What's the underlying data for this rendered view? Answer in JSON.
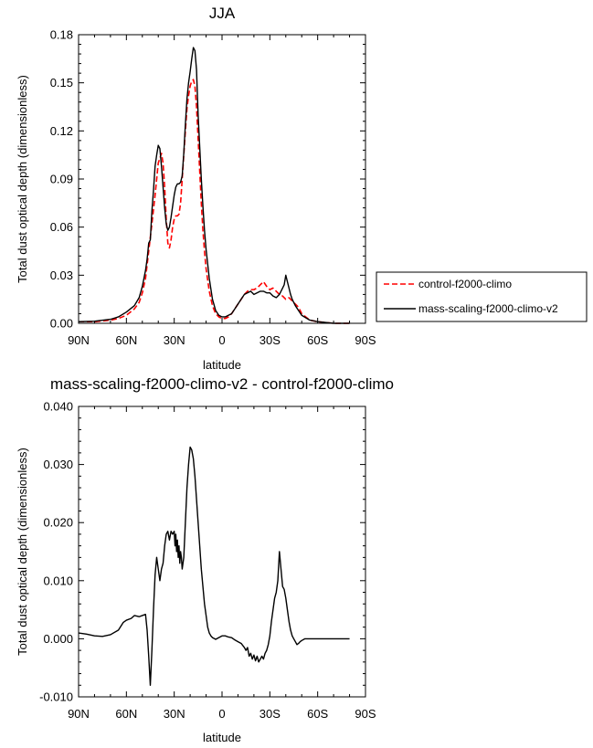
{
  "chart_data": [
    {
      "type": "line",
      "title": "JJA",
      "xlabel": "latitude",
      "ylabel": "Total dust optical depth (dimensionless)",
      "xlim": [
        90,
        -90
      ],
      "ylim": [
        0,
        0.18
      ],
      "x_ticks": [
        90,
        60,
        30,
        0,
        -30,
        -60,
        -90
      ],
      "x_tick_labels": [
        "90N",
        "60N",
        "30N",
        "0",
        "30S",
        "60S",
        "90S"
      ],
      "y_ticks": [
        0,
        0.03,
        0.06,
        0.09,
        0.12,
        0.15,
        0.18
      ],
      "y_tick_labels": [
        "0.00",
        "0.03",
        "0.06",
        "0.09",
        "0.12",
        "0.15",
        "0.18"
      ],
      "legend_position": "outside-right",
      "series": [
        {
          "name": "control-f2000-climo",
          "color": "#ff0000",
          "dash": "dashed",
          "x": [
            90,
            80,
            70,
            65,
            60,
            55,
            52,
            50,
            48,
            46,
            44,
            42,
            40,
            38,
            37,
            36,
            35,
            34,
            33,
            32,
            31,
            30,
            29,
            28,
            27,
            26,
            25,
            24,
            23,
            22,
            21,
            20,
            19,
            18,
            17,
            16,
            15,
            14,
            13,
            12,
            11,
            10,
            8,
            6,
            4,
            2,
            0,
            -2,
            -4,
            -6,
            -8,
            -10,
            -12,
            -14,
            -16,
            -18,
            -20,
            -22,
            -24,
            -26,
            -28,
            -30,
            -32,
            -34,
            -36,
            -38,
            -40,
            -42,
            -44,
            -46,
            -48,
            -50,
            -55,
            -60,
            -70,
            -80
          ],
          "y": [
            0.001,
            0.001,
            0.002,
            0.003,
            0.005,
            0.009,
            0.013,
            0.019,
            0.028,
            0.045,
            0.062,
            0.08,
            0.1,
            0.106,
            0.1,
            0.085,
            0.065,
            0.05,
            0.047,
            0.052,
            0.06,
            0.065,
            0.067,
            0.067,
            0.068,
            0.075,
            0.09,
            0.105,
            0.12,
            0.134,
            0.142,
            0.148,
            0.151,
            0.152,
            0.148,
            0.135,
            0.115,
            0.095,
            0.075,
            0.058,
            0.045,
            0.034,
            0.02,
            0.011,
            0.006,
            0.004,
            0.003,
            0.003,
            0.004,
            0.006,
            0.009,
            0.012,
            0.015,
            0.018,
            0.02,
            0.021,
            0.021,
            0.022,
            0.024,
            0.026,
            0.023,
            0.021,
            0.022,
            0.02,
            0.018,
            0.017,
            0.015,
            0.016,
            0.014,
            0.012,
            0.01,
            0.006,
            0.002,
            0.001,
            0.0,
            0.0
          ]
        },
        {
          "name": "mass-scaling-f2000-climo-v2",
          "color": "#000000",
          "dash": "solid",
          "x": [
            90,
            80,
            70,
            65,
            60,
            55,
            52,
            50,
            48,
            47,
            46,
            45,
            44,
            43,
            42,
            41,
            40,
            39,
            38,
            37,
            36,
            35,
            34,
            33,
            32,
            31,
            30,
            29,
            28,
            27,
            26,
            25,
            24,
            23,
            22,
            21,
            20,
            19,
            18,
            17,
            16,
            15,
            14,
            13,
            12,
            11,
            10,
            8,
            6,
            4,
            2,
            0,
            -2,
            -4,
            -6,
            -8,
            -10,
            -12,
            -14,
            -16,
            -18,
            -20,
            -22,
            -24,
            -26,
            -28,
            -30,
            -32,
            -34,
            -36,
            -37,
            -38,
            -39,
            -40,
            -41,
            -42,
            -43,
            -44,
            -46,
            -48,
            -50,
            -55,
            -60,
            -70,
            -80
          ],
          "y": [
            0.001,
            0.0013,
            0.0025,
            0.004,
            0.007,
            0.011,
            0.016,
            0.023,
            0.033,
            0.04,
            0.05,
            0.052,
            0.07,
            0.083,
            0.098,
            0.105,
            0.111,
            0.109,
            0.098,
            0.085,
            0.072,
            0.062,
            0.058,
            0.06,
            0.066,
            0.073,
            0.08,
            0.085,
            0.087,
            0.087,
            0.088,
            0.092,
            0.106,
            0.124,
            0.14,
            0.15,
            0.157,
            0.165,
            0.172,
            0.17,
            0.158,
            0.13,
            0.11,
            0.09,
            0.073,
            0.058,
            0.046,
            0.028,
            0.015,
            0.008,
            0.005,
            0.004,
            0.004,
            0.005,
            0.006,
            0.009,
            0.012,
            0.015,
            0.018,
            0.019,
            0.02,
            0.018,
            0.019,
            0.02,
            0.02,
            0.019,
            0.019,
            0.017,
            0.016,
            0.018,
            0.02,
            0.022,
            0.024,
            0.03,
            0.026,
            0.022,
            0.018,
            0.015,
            0.011,
            0.008,
            0.005,
            0.002,
            0.001,
            0.0,
            0.0
          ]
        }
      ]
    },
    {
      "type": "line",
      "title": "mass-scaling-f2000-climo-v2 - control-f2000-climo",
      "xlabel": "latitude",
      "ylabel": "Total dust optical depth (dimensionless)",
      "xlim": [
        90,
        -90
      ],
      "ylim": [
        -0.01,
        0.04
      ],
      "x_ticks": [
        90,
        60,
        30,
        0,
        -30,
        -60,
        -90
      ],
      "x_tick_labels": [
        "90N",
        "60N",
        "30N",
        "0",
        "30S",
        "60S",
        "90S"
      ],
      "y_ticks": [
        -0.01,
        0,
        0.01,
        0.02,
        0.03,
        0.04
      ],
      "y_tick_labels": [
        "-0.010",
        "0.000",
        "0.010",
        "0.020",
        "0.030",
        "0.040"
      ],
      "series": [
        {
          "color": "#000000",
          "dash": "solid",
          "x": [
            90,
            85,
            80,
            75,
            70,
            65,
            62,
            60,
            57,
            55,
            52,
            50,
            48,
            47,
            46,
            45,
            44,
            43,
            42,
            41,
            40,
            39,
            38,
            37,
            36,
            35,
            34,
            33,
            32,
            31,
            30,
            29.5,
            29,
            28.5,
            28,
            27.5,
            27,
            26.5,
            26,
            25.5,
            25,
            24,
            23,
            22,
            21,
            20,
            19,
            18,
            17,
            16,
            15,
            14,
            13,
            12,
            11,
            10,
            9,
            8,
            7,
            6,
            4,
            2,
            0,
            -2,
            -4,
            -6,
            -8,
            -10,
            -12,
            -14,
            -15,
            -16,
            -17,
            -18,
            -19,
            -20,
            -21,
            -22,
            -23,
            -24,
            -25,
            -26,
            -27,
            -28,
            -29,
            -30,
            -31,
            -32,
            -33,
            -34,
            -35,
            -36,
            -37,
            -38,
            -39,
            -40,
            -41,
            -42,
            -43,
            -44,
            -45,
            -46,
            -47,
            -48,
            -49,
            -50,
            -52,
            -55,
            -60,
            -70,
            -80
          ],
          "y": [
            0.001,
            0.0008,
            0.0005,
            0.0004,
            0.0007,
            0.0015,
            0.0028,
            0.0032,
            0.0035,
            0.004,
            0.0038,
            0.004,
            0.0042,
            0.0015,
            -0.003,
            -0.008,
            -0.002,
            0.005,
            0.011,
            0.014,
            0.012,
            0.01,
            0.012,
            0.013,
            0.016,
            0.018,
            0.0185,
            0.017,
            0.0185,
            0.018,
            0.0185,
            0.016,
            0.018,
            0.015,
            0.017,
            0.014,
            0.016,
            0.013,
            0.015,
            0.014,
            0.012,
            0.014,
            0.02,
            0.026,
            0.03,
            0.033,
            0.0325,
            0.031,
            0.028,
            0.024,
            0.02,
            0.016,
            0.012,
            0.009,
            0.006,
            0.004,
            0.002,
            0.001,
            0.0005,
            0.0002,
            -0.0001,
            0.0002,
            0.0005,
            0.0005,
            0.0003,
            0.0002,
            -0.0002,
            -0.0005,
            -0.0008,
            -0.0015,
            -0.002,
            -0.0015,
            -0.003,
            -0.0025,
            -0.0035,
            -0.0028,
            -0.0038,
            -0.003,
            -0.004,
            -0.0035,
            -0.003,
            -0.0035,
            -0.0025,
            -0.002,
            -0.001,
            0.0005,
            0.003,
            0.005,
            0.007,
            0.008,
            0.01,
            0.015,
            0.012,
            0.009,
            0.0085,
            0.007,
            0.005,
            0.003,
            0.0015,
            0.0005,
            0.0,
            -0.0005,
            -0.001,
            -0.0008,
            -0.0005,
            -0.0003,
            0.0,
            0.0,
            0.0,
            0.0,
            0.0
          ]
        }
      ]
    }
  ]
}
